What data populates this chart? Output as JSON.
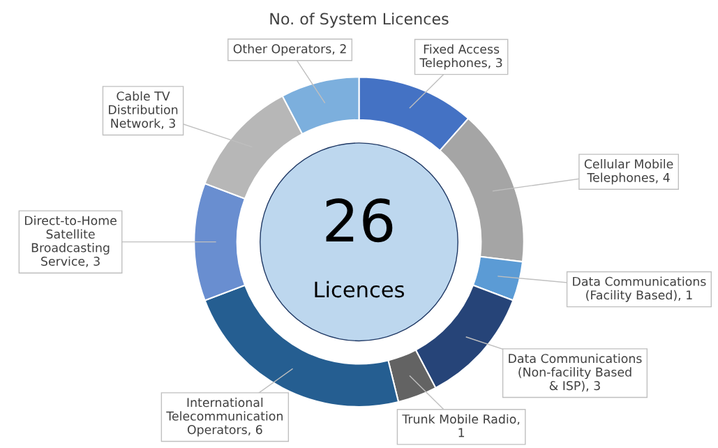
{
  "chart_data": {
    "type": "donut",
    "title": "No. of System Licences",
    "categories": [
      "Fixed Access Telephones, 3",
      "Cellular Mobile Telephones, 4",
      "Data Communications (Facility Based), 1",
      "Data Communications (Non-facility Based & ISP), 3",
      "Trunk Mobile Radio, 1",
      "International Telecommunication Operators, 6",
      "Direct-to-Home Satellite Broadcasting Service, 3",
      "Cable TV Distribution Network, 3",
      "Other Operators, 2"
    ],
    "values": [
      3,
      4,
      1,
      3,
      1,
      6,
      3,
      3,
      2
    ],
    "colors": [
      "#4472c4",
      "#a5a5a5",
      "#5b9bd5",
      "#264478",
      "#636363",
      "#255e91",
      "#698ed0",
      "#b7b7b7",
      "#7cafdd"
    ],
    "annotations": [
      "26",
      "Licences"
    ]
  }
}
